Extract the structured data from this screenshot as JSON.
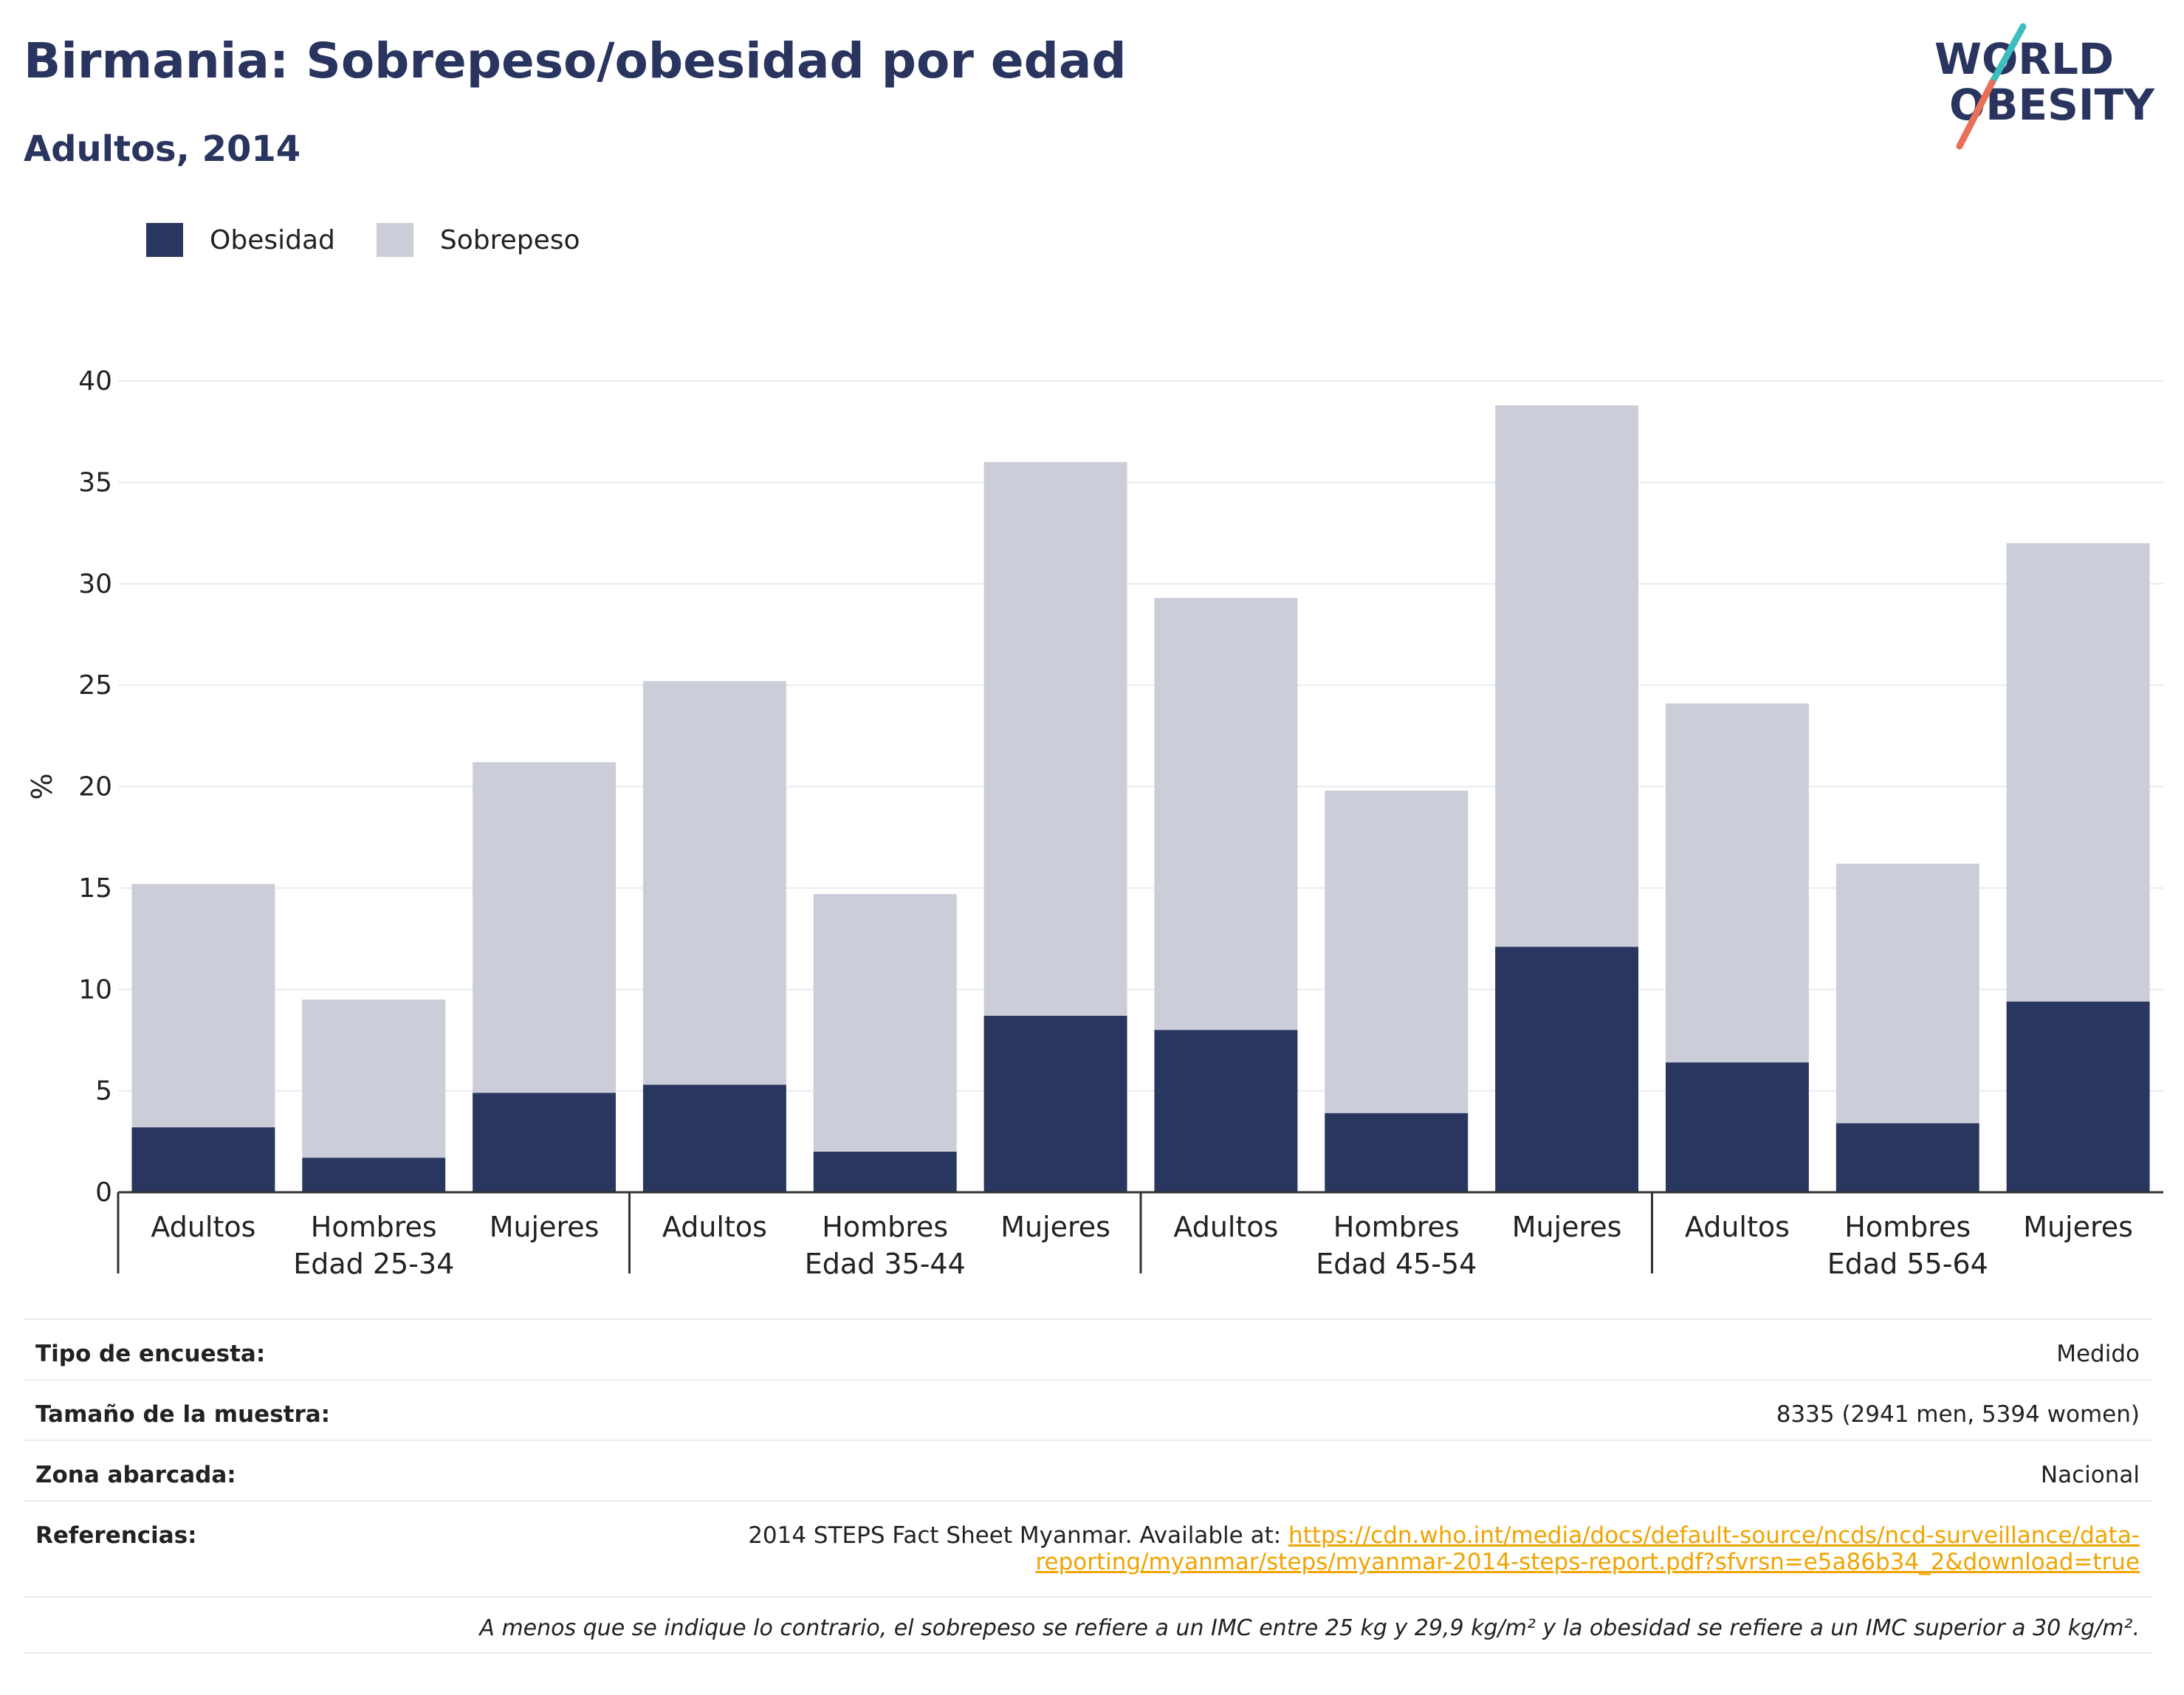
{
  "title": "Birmania: Sobrepeso/obesidad por edad",
  "subtitle": "Adultos, 2014",
  "logo": {
    "line1": "WORLD",
    "line2": "OBESITY"
  },
  "colors": {
    "obesity": "#29365f",
    "overweight": "#cbcdd8",
    "title": "#29345f",
    "link": "#f0a400",
    "logo_teal": "#3dbdbd",
    "logo_coral": "#e8705a"
  },
  "chart_data": {
    "type": "bar",
    "stacked": true,
    "ylabel": "%",
    "ylim": [
      0,
      40
    ],
    "yticks": [
      0,
      5,
      10,
      15,
      20,
      25,
      30,
      35,
      40
    ],
    "legend": "top-left",
    "grid": true,
    "groups": [
      "Edad 25-34",
      "Edad 35-44",
      "Edad 45-54",
      "Edad 55-64"
    ],
    "categories": [
      "Adultos",
      "Hombres",
      "Mujeres",
      "Adultos",
      "Hombres",
      "Mujeres",
      "Adultos",
      "Hombres",
      "Mujeres",
      "Adultos",
      "Hombres",
      "Mujeres"
    ],
    "series": [
      {
        "name": "Obesidad",
        "values": [
          3.2,
          1.7,
          4.9,
          5.3,
          2.0,
          8.7,
          8.0,
          3.9,
          12.1,
          6.4,
          3.4,
          9.4
        ]
      },
      {
        "name": "Sobrepeso",
        "values": [
          12.0,
          7.8,
          16.3,
          19.9,
          12.7,
          27.3,
          21.3,
          15.9,
          26.7,
          17.7,
          12.8,
          22.6
        ]
      }
    ]
  },
  "info": {
    "survey_type_label": "Tipo de encuesta:",
    "survey_type_value": "Medido",
    "sample_size_label": "Tamaño de la muestra:",
    "sample_size_value": "8335 (2941 men, 5394 women)",
    "area_label": "Zona abarcada:",
    "area_value": "Nacional",
    "references_label": "Referencias:",
    "references_text": "2014 STEPS Fact Sheet Myanmar. Available at: ",
    "references_link_1": "https://cdn.who.int/media/docs/default-source/ncds/ncd-surveillance/data-",
    "references_link_2": "reporting/myanmar/steps/myanmar-2014-steps-report.pdf?sfvrsn=e5a86b34_2&download=true",
    "footnote": "A menos que se indique lo contrario, el sobrepeso se refiere a un IMC entre 25 kg y 29,9 kg/m² y la obesidad se refiere a un IMC superior a 30 kg/m²."
  }
}
